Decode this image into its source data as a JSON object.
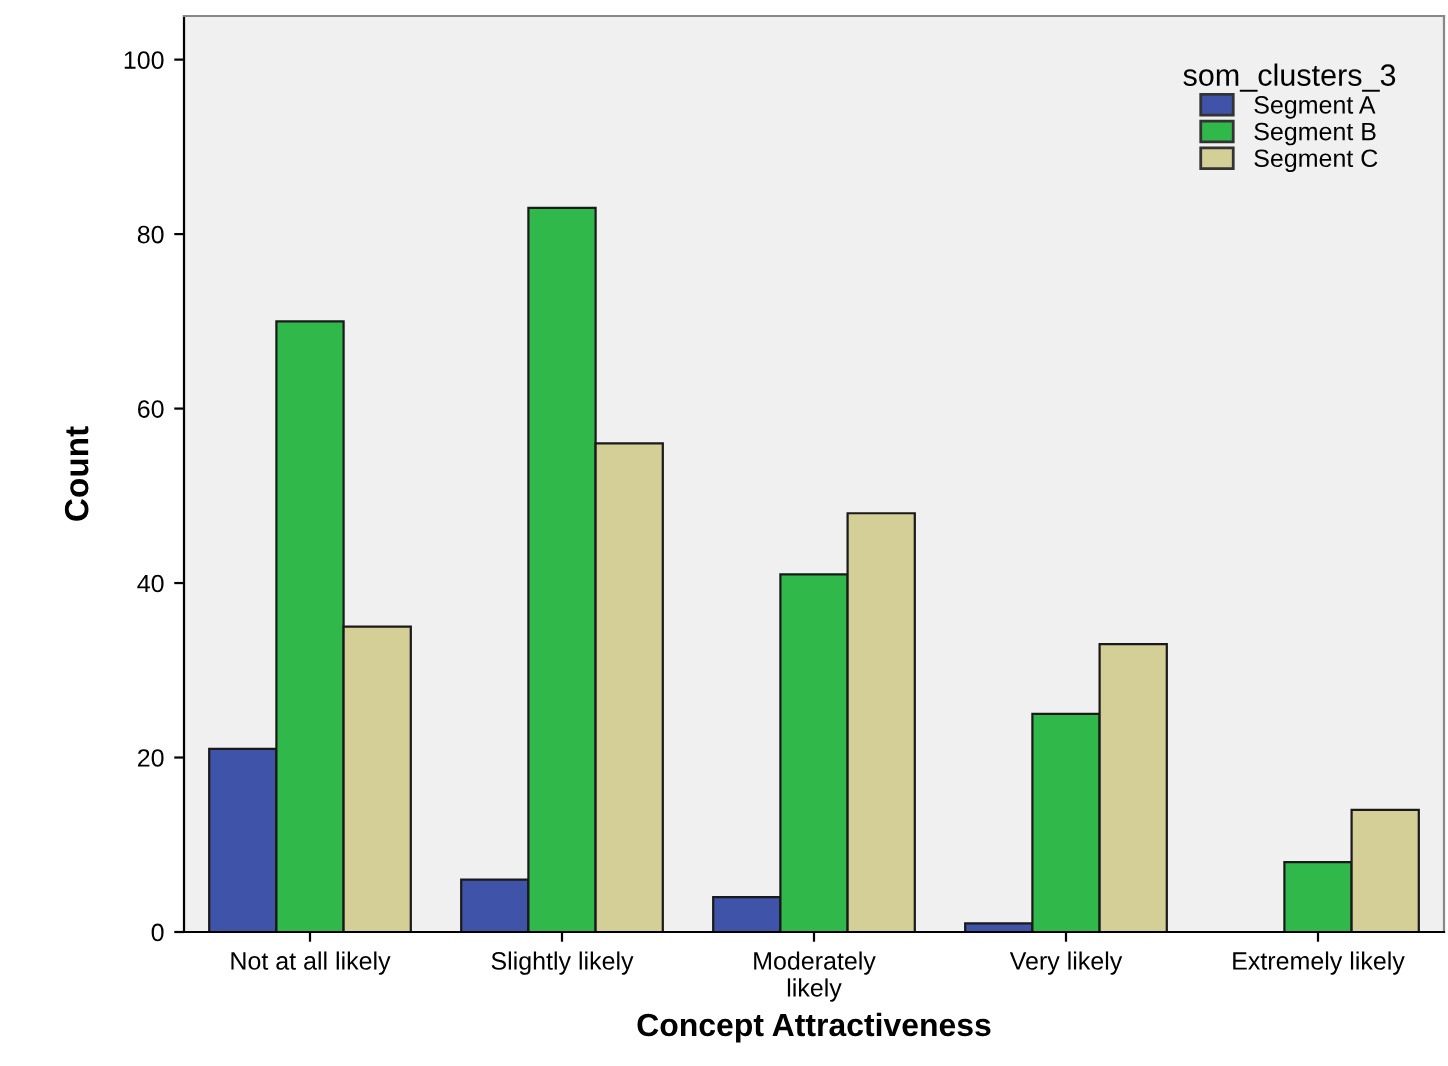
{
  "chart_data": {
    "type": "bar",
    "xlabel": "Concept Attractiveness",
    "ylabel": "Count",
    "legend_title": "som_clusters_3",
    "categories": [
      "Not at all likely",
      "Slightly likely",
      "Moderately\nlikely",
      "Very likely",
      "Extremely likely"
    ],
    "series": [
      {
        "name": "Segment A",
        "color": "#3f54a8",
        "values": [
          21,
          6,
          4,
          1,
          null
        ]
      },
      {
        "name": "Segment B",
        "color": "#30b94a",
        "values": [
          70,
          83,
          41,
          25,
          8
        ]
      },
      {
        "name": "Segment C",
        "color": "#d4cf97",
        "values": [
          35,
          56,
          48,
          33,
          14
        ]
      }
    ],
    "ylim": [
      0,
      105
    ],
    "yticks": [
      0,
      20,
      40,
      60,
      80,
      100
    ],
    "grid": false,
    "legend": "top right"
  }
}
